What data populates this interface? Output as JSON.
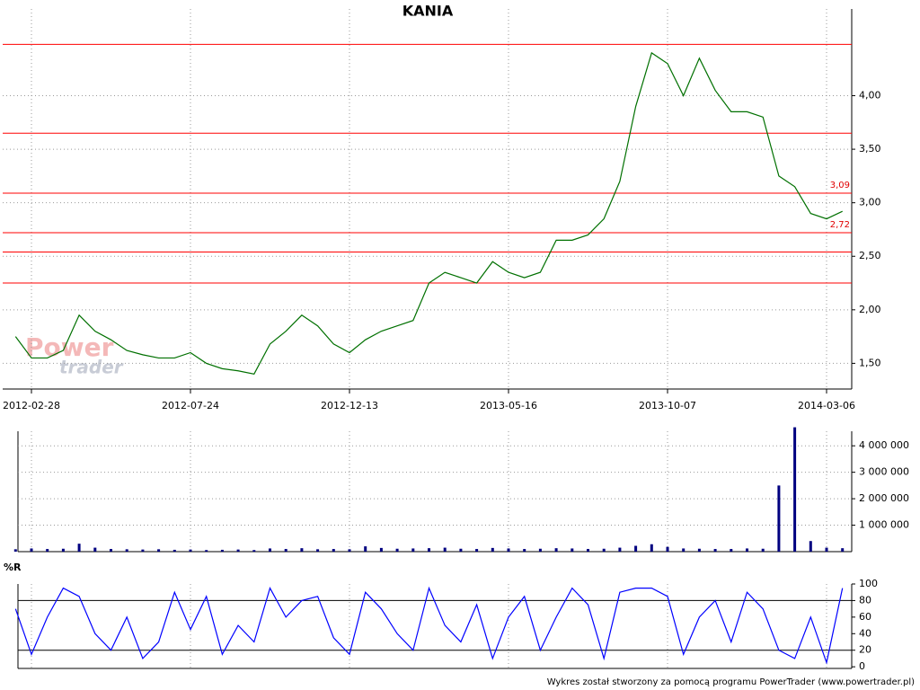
{
  "chart_data": [
    {
      "type": "line",
      "title": "KANIA",
      "categories": [
        null,
        "2012-02-28",
        null,
        null,
        null,
        null,
        null,
        null,
        null,
        null,
        null,
        "2012-07-24",
        null,
        null,
        null,
        null,
        null,
        null,
        null,
        null,
        null,
        "2012-12-13",
        null,
        null,
        null,
        null,
        null,
        null,
        null,
        null,
        null,
        "2013-05-16",
        null,
        null,
        null,
        null,
        null,
        null,
        null,
        null,
        null,
        "2013-10-07",
        null,
        null,
        null,
        null,
        null,
        null,
        null,
        null,
        null,
        "2014-03-06",
        null
      ],
      "values": [
        1.75,
        1.55,
        1.55,
        1.62,
        1.95,
        1.8,
        1.72,
        1.62,
        1.58,
        1.55,
        1.55,
        1.6,
        1.5,
        1.45,
        1.43,
        1.4,
        1.68,
        1.8,
        1.95,
        1.85,
        1.68,
        1.6,
        1.72,
        1.8,
        1.85,
        1.9,
        2.25,
        2.35,
        2.3,
        2.25,
        2.45,
        2.35,
        2.3,
        2.35,
        2.65,
        2.65,
        2.7,
        2.85,
        3.2,
        3.9,
        4.4,
        4.3,
        4.0,
        4.35,
        4.05,
        3.85,
        3.85,
        3.8,
        3.25,
        3.15,
        2.9,
        2.85,
        2.92
      ],
      "color": "#007000",
      "line_color": "#ff0000",
      "ylim": [
        1.26,
        4.81
      ],
      "yticks": [
        {
          "value": 1.5,
          "label": "1,50"
        },
        {
          "value": 2.0,
          "label": "2,00"
        },
        {
          "value": 2.5,
          "label": "2,50"
        },
        {
          "value": 3.0,
          "label": "3,00"
        },
        {
          "value": 3.5,
          "label": "3,50"
        },
        {
          "value": 4.0,
          "label": "4,00"
        }
      ],
      "hlines": [
        4.48,
        3.65,
        3.09,
        2.72,
        2.54,
        2.25
      ],
      "annotations": [
        {
          "text": "3,09",
          "value": 3.09
        },
        {
          "text": "2,72",
          "value": 2.72
        }
      ],
      "watermark": [
        "Power",
        "trader"
      ],
      "grid": true
    },
    {
      "type": "bar",
      "values": [
        90000,
        120000,
        100000,
        110000,
        300000,
        150000,
        100000,
        90000,
        80000,
        90000,
        70000,
        80000,
        60000,
        70000,
        80000,
        60000,
        120000,
        100000,
        130000,
        90000,
        100000,
        90000,
        200000,
        140000,
        110000,
        120000,
        130000,
        150000,
        110000,
        100000,
        140000,
        120000,
        100000,
        110000,
        130000,
        120000,
        100000,
        110000,
        150000,
        220000,
        280000,
        180000,
        120000,
        110000,
        100000,
        100000,
        120000,
        110000,
        2500000,
        4700000,
        400000,
        150000,
        130000
      ],
      "color": "#000080",
      "ylim": [
        0,
        4550000
      ],
      "yticks": [
        {
          "value": 1000000,
          "label": "1 000 000"
        },
        {
          "value": 2000000,
          "label": "2 000 000"
        },
        {
          "value": 3000000,
          "label": "3 000 000"
        },
        {
          "value": 4000000,
          "label": "4 000 000"
        }
      ],
      "grid": true
    },
    {
      "type": "line",
      "title": "%R",
      "values": [
        70,
        15,
        60,
        95,
        85,
        40,
        20,
        60,
        10,
        30,
        90,
        45,
        85,
        15,
        50,
        30,
        95,
        60,
        80,
        85,
        35,
        15,
        90,
        70,
        40,
        20,
        95,
        50,
        30,
        75,
        10,
        60,
        85,
        20,
        60,
        95,
        75,
        10,
        90,
        95,
        95,
        85,
        15,
        60,
        80,
        30,
        90,
        70,
        20,
        10,
        60,
        5,
        95
      ],
      "color": "#0000ff",
      "line_color": "#000000",
      "ylim": [
        -2,
        100
      ],
      "yticks": [
        0,
        20,
        40,
        60,
        80,
        100
      ],
      "hlines": [
        20,
        80
      ],
      "grid": false
    }
  ],
  "footer": "Wykres został stworzony za pomocą programu PowerTrader (www.powertrader.pl)"
}
